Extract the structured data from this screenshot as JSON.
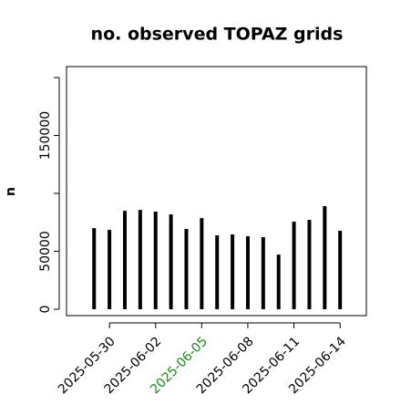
{
  "chart_data": {
    "type": "needle",
    "title": "no. observed TOPAZ grids",
    "ylabel": "n",
    "x": [
      "2025-05-29",
      "2025-05-30",
      "2025-05-31",
      "2025-06-01",
      "2025-06-02",
      "2025-06-03",
      "2025-06-04",
      "2025-06-05",
      "2025-06-06",
      "2025-06-07",
      "2025-06-08",
      "2025-06-09",
      "2025-06-10",
      "2025-06-11",
      "2025-06-12",
      "2025-06-13",
      "2025-06-14"
    ],
    "values": [
      70000,
      68500,
      85000,
      85800,
      84300,
      81900,
      69300,
      78700,
      63800,
      64600,
      63000,
      62200,
      47200,
      75600,
      77200,
      89000,
      67700
    ],
    "color": "#000000",
    "xlim": [
      "2025-05-27T05:00:00Z",
      "2025-06-15T17:00:00Z"
    ],
    "xticks": [
      "2025-05-30",
      "2025-06-02",
      "2025-06-05",
      "2025-06-08",
      "2025-06-11",
      "2025-06-14"
    ],
    "xtick_colors": [
      "#000000",
      "#000000",
      "#1a8a1a",
      "#000000",
      "#000000",
      "#000000"
    ],
    "ylim": [
      -5500,
      209500
    ],
    "yticks": [
      0,
      50000,
      150000
    ],
    "ytick_marks": [
      0,
      50000,
      100000,
      150000,
      200000
    ]
  }
}
